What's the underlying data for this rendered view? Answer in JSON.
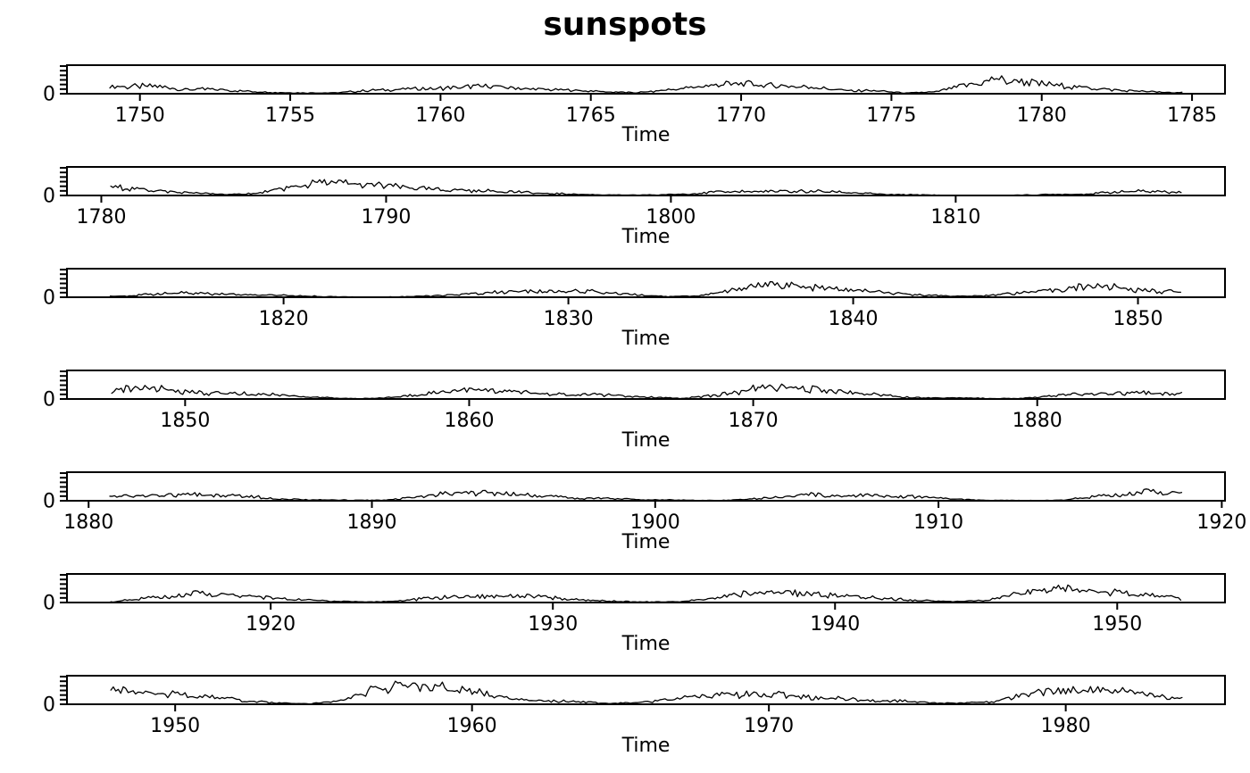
{
  "title": "sunspots",
  "chart_data": {
    "type": "line",
    "title": "sunspots",
    "xlabel": "Time",
    "ylabel": "",
    "colors": {
      "line": "#000000",
      "frame": "#000000",
      "background": "#ffffff"
    },
    "y_axis": {
      "ylim": [
        0,
        310
      ],
      "ticks": [
        0,
        50,
        100,
        150,
        200,
        250,
        300
      ],
      "labeled_tick": "0"
    },
    "x_years_start": 1749,
    "x_years_end": 1983,
    "annual_mean_values": [
      80.9,
      83.4,
      47.7,
      47.8,
      30.7,
      12.2,
      9.6,
      10.2,
      32.4,
      47.6,
      54.0,
      62.9,
      85.9,
      61.2,
      45.1,
      36.4,
      20.9,
      11.4,
      37.8,
      69.8,
      106.1,
      100.8,
      81.6,
      66.5,
      34.8,
      30.6,
      7.0,
      19.8,
      92.5,
      154.4,
      125.9,
      84.8,
      68.1,
      38.5,
      22.8,
      10.2,
      24.1,
      82.9,
      132.0,
      130.9,
      118.1,
      89.9,
      66.6,
      60.0,
      46.9,
      41.0,
      21.3,
      16.0,
      6.4,
      4.1,
      6.8,
      14.5,
      34.0,
      45.0,
      43.1,
      47.5,
      42.2,
      28.1,
      10.1,
      8.1,
      2.5,
      0.0,
      1.4,
      5.0,
      12.2,
      13.9,
      35.4,
      45.8,
      41.1,
      30.1,
      23.9,
      15.6,
      6.6,
      4.0,
      1.8,
      8.5,
      16.6,
      36.3,
      49.6,
      64.2,
      67.0,
      70.9,
      47.8,
      27.5,
      8.5,
      13.2,
      56.9,
      121.5,
      138.3,
      103.2,
      85.7,
      64.6,
      36.7,
      24.2,
      10.7,
      15.0,
      40.1,
      61.5,
      98.5,
      124.7,
      96.3,
      66.6,
      64.5,
      54.1,
      39.0,
      20.6,
      6.7,
      4.3,
      22.7,
      54.8,
      93.8,
      95.8,
      77.2,
      59.1,
      44.0,
      47.0,
      30.5,
      16.3,
      7.3,
      37.6,
      74.0,
      139.0,
      111.2,
      101.6,
      66.2,
      44.7,
      17.0,
      11.3,
      12.4,
      3.4,
      6.0,
      32.3,
      54.3,
      59.7,
      63.7,
      63.5,
      52.2,
      25.4,
      13.1,
      6.8,
      6.3,
      7.1,
      35.6,
      73.0,
      85.1,
      78.0,
      64.0,
      41.8,
      26.2,
      26.7,
      12.1,
      9.5,
      2.7,
      5.0,
      24.4,
      42.0,
      63.5,
      53.8,
      62.0,
      48.5,
      43.9,
      18.6,
      5.7,
      3.6,
      1.4,
      9.6,
      47.4,
      57.1,
      103.9,
      80.6,
      63.6,
      37.6,
      26.1,
      14.2,
      5.8,
      16.7,
      44.3,
      63.9,
      69.0,
      77.8,
      64.9,
      35.7,
      21.2,
      11.1,
      5.7,
      8.7,
      36.1,
      79.7,
      114.4,
      109.6,
      88.8,
      67.8,
      47.5,
      30.6,
      16.3,
      9.6,
      33.2,
      92.6,
      151.6,
      136.3,
      134.7,
      83.9,
      69.4,
      31.5,
      13.9,
      4.4,
      38.0,
      141.7,
      190.2,
      184.8,
      159.0,
      112.3,
      53.9,
      37.5,
      27.9,
      10.2,
      15.1,
      47.0,
      93.8,
      105.9,
      105.5,
      104.5,
      66.6,
      68.9,
      38.0,
      34.5,
      15.5,
      12.6,
      27.5,
      92.5,
      155.4,
      154.6,
      140.4,
      115.9,
      66.6
    ],
    "panels": [
      {
        "x_start": 1749.0,
        "x_end": 1784.67,
        "xticks": [
          1750,
          1755,
          1760,
          1765,
          1770,
          1775,
          1780,
          1785
        ]
      },
      {
        "x_start": 1780.3,
        "x_end": 1817.95,
        "xticks": [
          1780,
          1790,
          1800,
          1810
        ]
      },
      {
        "x_start": 1813.9,
        "x_end": 1851.55,
        "xticks": [
          1820,
          1830,
          1840,
          1850
        ]
      },
      {
        "x_start": 1847.35,
        "x_end": 1885.1,
        "xticks": [
          1850,
          1860,
          1870,
          1880
        ]
      },
      {
        "x_start": 1880.75,
        "x_end": 1918.6,
        "xticks": [
          1880,
          1890,
          1900,
          1910,
          1920
        ]
      },
      {
        "x_start": 1914.3,
        "x_end": 1952.3,
        "xticks": [
          1920,
          1930,
          1940,
          1950
        ]
      },
      {
        "x_start": 1947.8,
        "x_end": 1983.92,
        "xticks": [
          1950,
          1960,
          1970,
          1980
        ]
      }
    ]
  }
}
